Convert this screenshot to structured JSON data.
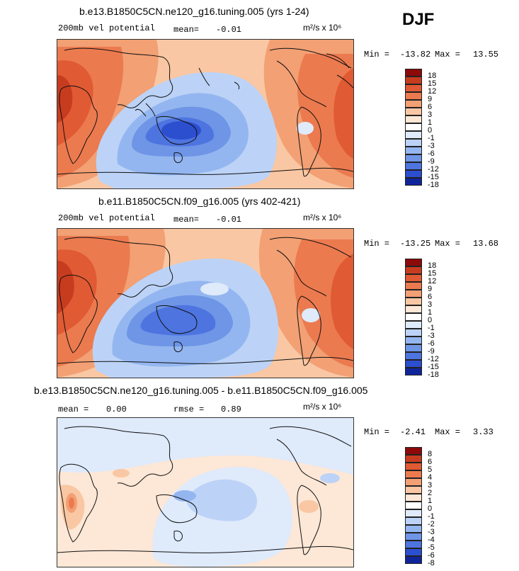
{
  "season": "DJF",
  "colors": {
    "pos": [
      "#fde7d6",
      "#f9c7a3",
      "#f2a074",
      "#ec7a4f",
      "#e05a33",
      "#c73c1f",
      "#8c0a0a"
    ],
    "neg": [
      "#dfeafb",
      "#bcd3f7",
      "#94b6f0",
      "#6e95e6",
      "#4d74df",
      "#2c4fd0",
      "#10249a"
    ],
    "coast": "#111111"
  },
  "chart_data": [
    {
      "type": "heatmap",
      "title": "b.e13.B1850C5CN.ne120_g16.tuning.005 (yrs 1-24)",
      "variable": "200mb vel potential",
      "stat_label": "mean=",
      "stat_value": "-0.01",
      "units": "m²/s x 10⁶",
      "min_label": "Min =",
      "min": "-13.82",
      "max_label": "Max =",
      "max": "13.55",
      "levels": [
        "18",
        "15",
        "12",
        "9",
        "6",
        "3",
        "1",
        "0",
        "-1",
        "-3",
        "-6",
        "-9",
        "-12",
        "-15",
        "-18"
      ]
    },
    {
      "type": "heatmap",
      "title": "b.e11.B1850C5CN.f09_g16.005 (yrs 402-421)",
      "variable": "200mb vel potential",
      "stat_label": "mean=",
      "stat_value": "-0.01",
      "units": "m²/s x 10⁶",
      "min_label": "Min =",
      "min": "-13.25",
      "max_label": "Max =",
      "max": "13.68",
      "levels": [
        "18",
        "15",
        "12",
        "9",
        "6",
        "3",
        "1",
        "0",
        "-1",
        "-3",
        "-6",
        "-9",
        "-12",
        "-15",
        "-18"
      ]
    },
    {
      "type": "heatmap",
      "title": "b.e13.B1850C5CN.ne120_g16.tuning.005 - b.e11.B1850C5CN.f09_g16.005",
      "mean_label": "mean =",
      "mean_value": "0.00",
      "rmse_label": "rmse =",
      "rmse_value": "0.89",
      "units": "m²/s x 10⁶",
      "min_label": "Min =",
      "min": "-2.41",
      "max_label": "Max =",
      "max": "3.33",
      "levels": [
        "8",
        "6",
        "5",
        "4",
        "3",
        "2",
        "1",
        "0",
        "-1",
        "-2",
        "-3",
        "-4",
        "-5",
        "-6",
        "-8"
      ]
    }
  ]
}
